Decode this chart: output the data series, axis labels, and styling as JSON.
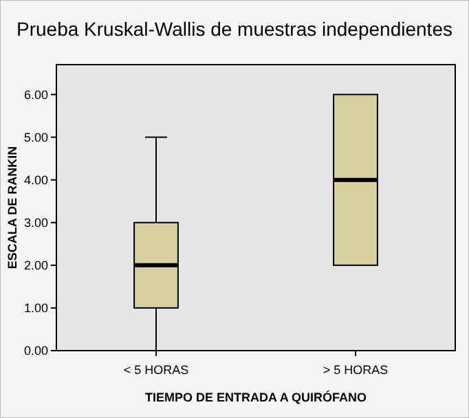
{
  "chart_data": {
    "type": "box",
    "title": "Prueba Kruskal-Wallis de muestras independientes",
    "xlabel": "TIEMPO DE ENTRADA A QUIRÓFANO",
    "ylabel": "ESCALA DE RANKIN",
    "categories": [
      "< 5 HORAS",
      "> 5 HORAS"
    ],
    "color": "#d6d19e",
    "boxes": [
      {
        "low": 0,
        "q1": 1,
        "median": 2,
        "q3": 3,
        "high": 5
      },
      {
        "low": 2,
        "q1": 2,
        "median": 4,
        "q3": 6,
        "high": 6
      }
    ],
    "ylim": [
      0,
      6.7
    ],
    "yticks": [
      {
        "value": 0,
        "label": "0.00"
      },
      {
        "value": 1,
        "label": "1.00"
      },
      {
        "value": 2,
        "label": "2.00"
      },
      {
        "value": 3,
        "label": "3.00"
      },
      {
        "value": 4,
        "label": "4.00"
      },
      {
        "value": 5,
        "label": "5.00"
      },
      {
        "value": 6,
        "label": "6.00"
      }
    ],
    "grid": false
  }
}
